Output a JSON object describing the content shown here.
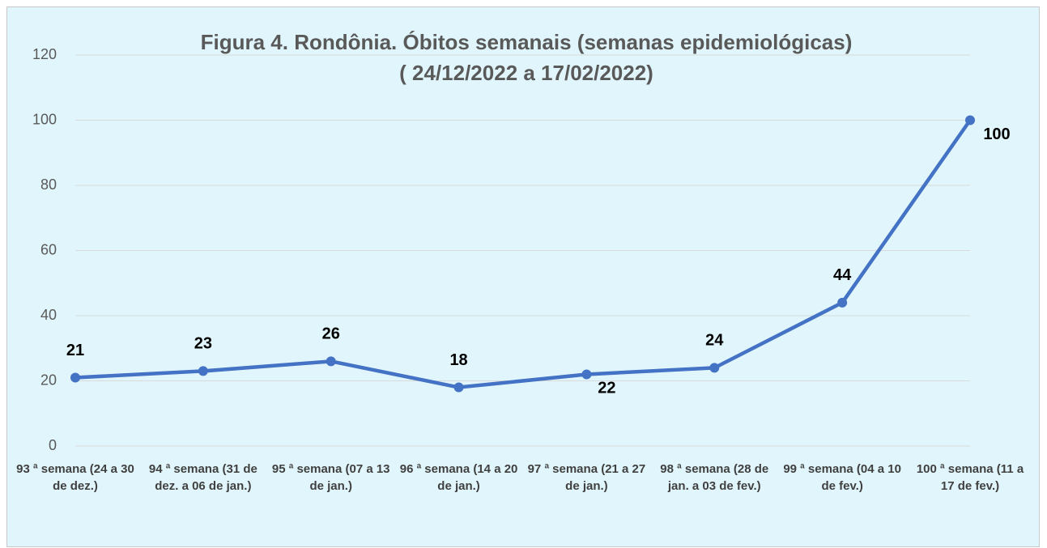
{
  "chart_data": {
    "type": "line",
    "title": [
      "Figura 4.  Rondônia. Óbitos semanais (semanas epidemiológicas)",
      "( 24/12/2022 a 17/02/2022)"
    ],
    "categories": [
      "93 ª semana (24 a 30 de dez.)",
      "94 ª semana (31 de dez. a 06 de jan.)",
      "95 ª semana (07 a 13 de jan.)",
      "96 ª semana (14 a 20 de jan.)",
      "97 ª semana (21 a 27 de jan.)",
      "98 ª semana (28 de jan. a 03 de fev.)",
      "99 ª semana (04 a 10 de fev.)",
      "100 ª semana (11 a 17 de fev.)"
    ],
    "values": [
      21,
      23,
      26,
      18,
      22,
      24,
      44,
      100
    ],
    "color": "#4472c4",
    "ylim": [
      0,
      120
    ],
    "yticks": [
      0,
      20,
      40,
      60,
      80,
      100,
      120
    ],
    "grid": true
  }
}
